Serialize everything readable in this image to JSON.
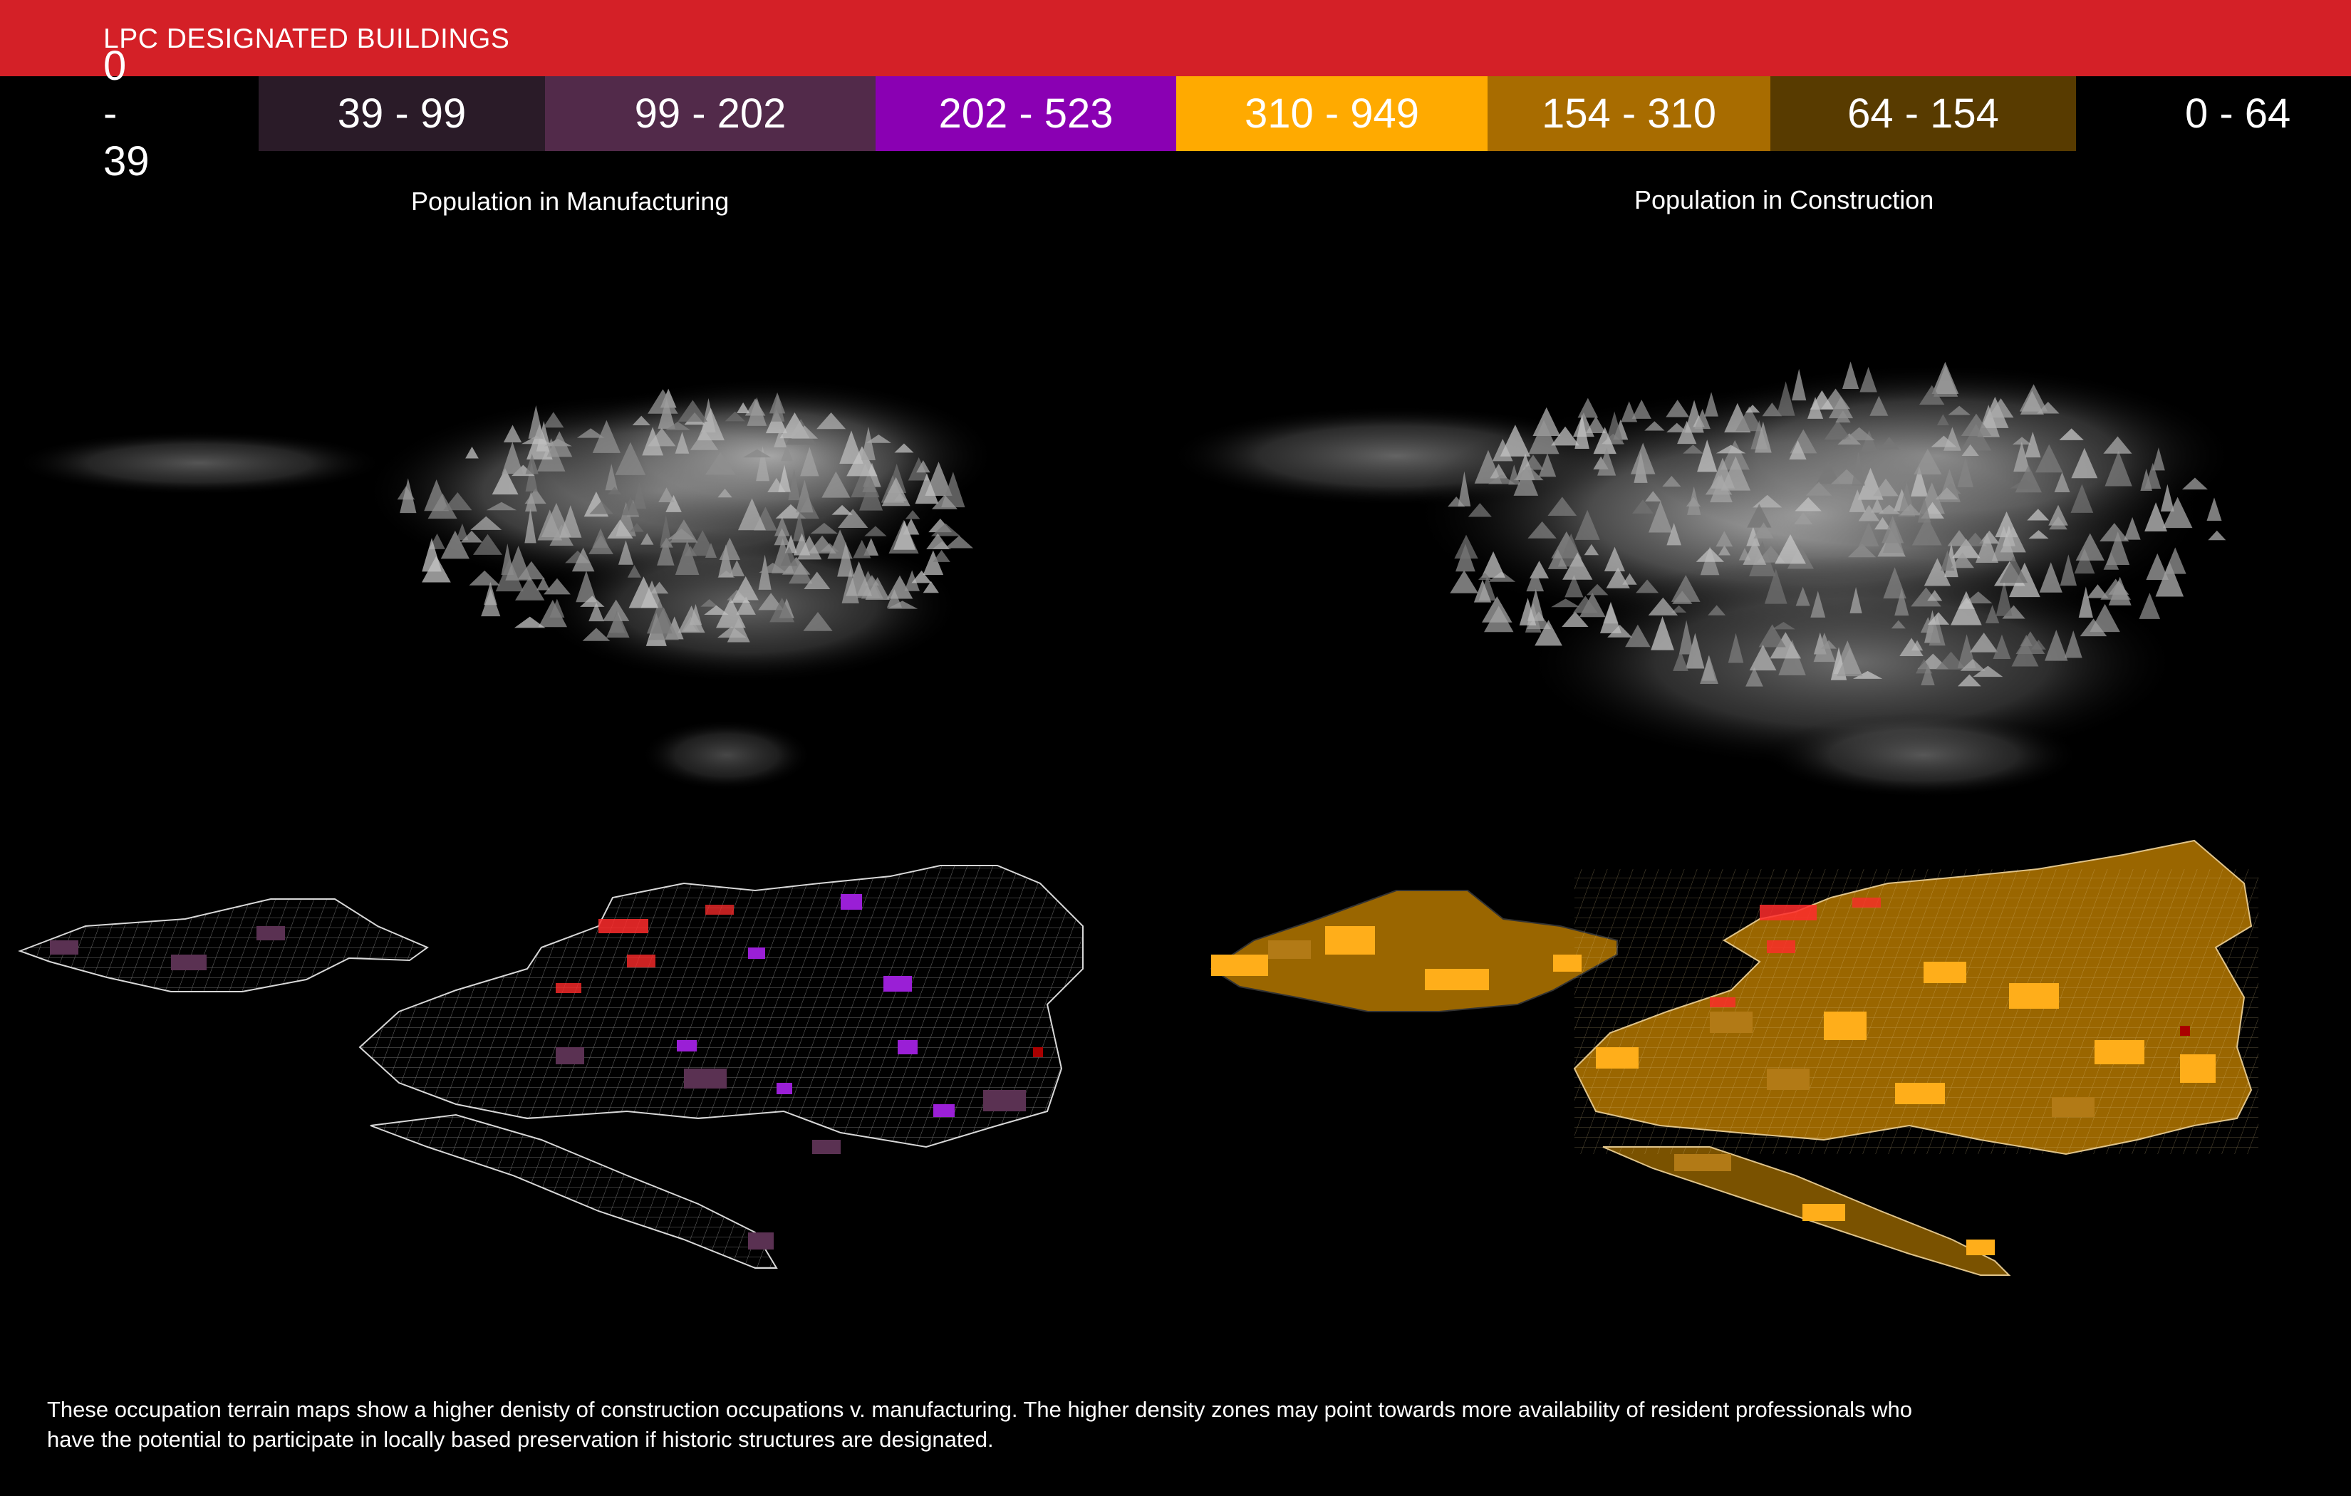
{
  "header": {
    "title": "LPC DESIGNATED BUILDINGS"
  },
  "legend": {
    "manufacturing": [
      {
        "label": "0 - 39",
        "color": "#000000"
      },
      {
        "label": "39 - 99",
        "color": "#2a1b28"
      },
      {
        "label": "99 - 202",
        "color": "#522a4a"
      },
      {
        "label": "202 - 523",
        "color": "#8a00b3"
      }
    ],
    "construction": [
      {
        "label": "310 - 949",
        "color": "#ffaa00"
      },
      {
        "label": "154 - 310",
        "color": "#a86c00"
      },
      {
        "label": "64 - 154",
        "color": "#583b00"
      },
      {
        "label": "0 - 64",
        "color": "#000000"
      }
    ]
  },
  "maps": {
    "manufacturing": {
      "title": "Population in Manufacturing"
    },
    "construction": {
      "title": "Population in Construction"
    }
  },
  "colors": {
    "header": "#d42027",
    "terrain": "#8c8c8c",
    "designated": "#ff2b2b",
    "manufacturing_high": "#9a1fd6",
    "manufacturing_mid": "#5a3152",
    "construction_high": "#ffae1a",
    "construction_mid": "#b27a16",
    "outline": "#d8d8d8"
  },
  "caption": {
    "line1": "These occupation terrain maps show a higher denisty of construction occupations v. manufacturing. The higher density zones may point towards more availability of resident professionals who",
    "line2": "have the potential to participate in locally based preservation if historic structures are designated."
  }
}
